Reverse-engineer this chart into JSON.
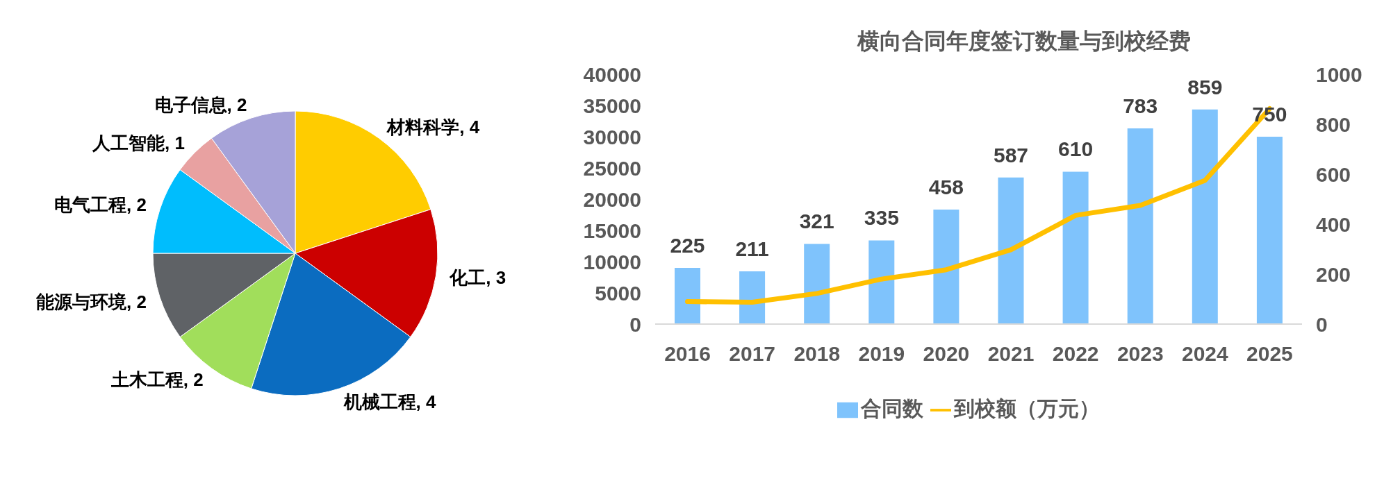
{
  "chart_data": [
    {
      "type": "pie",
      "categories": [
        "材料科学",
        "化工",
        "机械工程",
        "土木工程",
        "能源与环境",
        "电气工程",
        "人工智能",
        "电子信息"
      ],
      "values": [
        4,
        3,
        4,
        2,
        2,
        2,
        1,
        2
      ],
      "colors": [
        "#ffcc00",
        "#cc0000",
        "#0b6cc0",
        "#a1de5b",
        "#5f6266",
        "#00bdfd",
        "#e8a1a1",
        "#a6a2d8"
      ],
      "value_labels": [
        ", 4",
        ", 3",
        ", 4",
        ", 2",
        ", 2",
        ", 2",
        ", 1",
        ", 2"
      ]
    },
    {
      "type": "bar",
      "title": "横向合同年度签订数量与到校经费",
      "categories": [
        "2016",
        "2017",
        "2018",
        "2019",
        "2020",
        "2021",
        "2022",
        "2023",
        "2024",
        "2025"
      ],
      "series": [
        {
          "name": "合同数",
          "type": "bar",
          "axis": "y2",
          "color": "#7fc3fc",
          "values": [
            225,
            211,
            321,
            335,
            458,
            587,
            610,
            783,
            859,
            750
          ],
          "value_labels": [
            "225",
            "211",
            "321",
            "335",
            "458",
            "587",
            "610",
            "783",
            "859",
            "750"
          ]
        },
        {
          "name": "到校额（万元）",
          "type": "line",
          "color": "#ffc000",
          "values": [
            3600,
            3500,
            4900,
            7200,
            8700,
            11900,
            17400,
            19000,
            23000,
            34500
          ]
        }
      ],
      "ylim": [
        0,
        40000
      ],
      "yticks": [
        0,
        5000,
        10000,
        15000,
        20000,
        25000,
        30000,
        35000,
        40000
      ],
      "y2lim": [
        0,
        1000
      ],
      "y2ticks": [
        0,
        200,
        400,
        600,
        800,
        1000
      ],
      "legend": "bottom",
      "marker": "none"
    }
  ]
}
